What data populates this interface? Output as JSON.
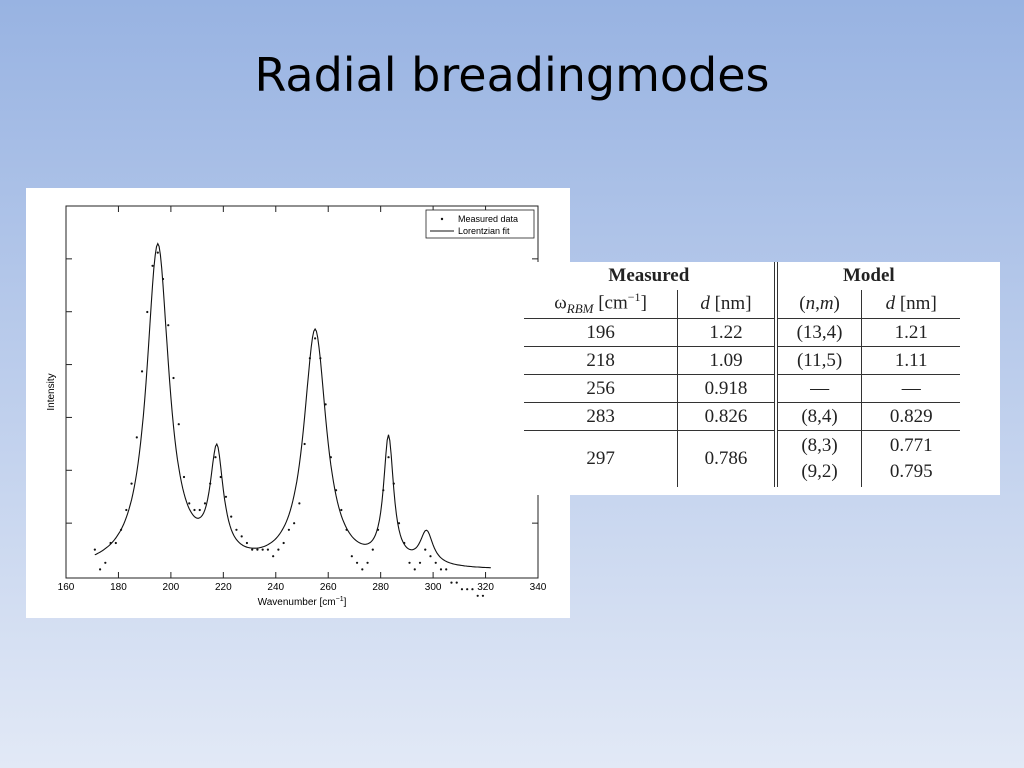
{
  "slide": {
    "title": "Radial breadingmodes"
  },
  "chart_data": {
    "type": "line",
    "xlabel": "Wavenumber [cm",
    "xlabel_sup": "−1",
    "xlabel_end": "]",
    "ylabel": "Intensity",
    "xlim": [
      160,
      340
    ],
    "ylim": [
      0,
      1
    ],
    "xticks": [
      160,
      180,
      200,
      220,
      240,
      260,
      280,
      300,
      320,
      340
    ],
    "legend": {
      "position": "top-right",
      "measured": "Measured data",
      "fit": "Lorentzian fit"
    },
    "fit": {
      "baseline": 0.008,
      "peaks": [
        {
          "center": 195,
          "height": 0.49,
          "hwhm": 5.2
        },
        {
          "center": 217.5,
          "height": 0.16,
          "hwhm": 3.0
        },
        {
          "center": 255,
          "height": 0.36,
          "hwhm": 5.2
        },
        {
          "center": 283,
          "height": 0.19,
          "hwhm": 2.3
        },
        {
          "center": 297.5,
          "height": 0.05,
          "hwhm": 3.0
        }
      ],
      "x_range": [
        171,
        322
      ]
    },
    "series": [
      {
        "name": "Measured data",
        "points": [
          [
            171,
            0.04
          ],
          [
            173,
            0.01
          ],
          [
            175,
            0.02
          ],
          [
            177,
            0.05
          ],
          [
            179,
            0.05
          ],
          [
            181,
            0.07
          ],
          [
            183,
            0.1
          ],
          [
            185,
            0.14
          ],
          [
            187,
            0.21
          ],
          [
            189,
            0.31
          ],
          [
            191,
            0.4
          ],
          [
            193,
            0.47
          ],
          [
            195,
            0.49
          ],
          [
            197,
            0.45
          ],
          [
            199,
            0.38
          ],
          [
            201,
            0.3
          ],
          [
            203,
            0.23
          ],
          [
            205,
            0.15
          ],
          [
            207,
            0.11
          ],
          [
            209,
            0.1
          ],
          [
            211,
            0.1
          ],
          [
            213,
            0.11
          ],
          [
            215,
            0.14
          ],
          [
            217,
            0.18
          ],
          [
            219,
            0.15
          ],
          [
            221,
            0.12
          ],
          [
            223,
            0.09
          ],
          [
            225,
            0.07
          ],
          [
            227,
            0.06
          ],
          [
            229,
            0.05
          ],
          [
            231,
            0.04
          ],
          [
            233,
            0.04
          ],
          [
            235,
            0.04
          ],
          [
            237,
            0.04
          ],
          [
            239,
            0.03
          ],
          [
            241,
            0.04
          ],
          [
            243,
            0.05
          ],
          [
            245,
            0.07
          ],
          [
            247,
            0.08
          ],
          [
            249,
            0.11
          ],
          [
            251,
            0.2
          ],
          [
            253,
            0.33
          ],
          [
            255,
            0.36
          ],
          [
            257,
            0.33
          ],
          [
            259,
            0.26
          ],
          [
            261,
            0.18
          ],
          [
            263,
            0.13
          ],
          [
            265,
            0.1
          ],
          [
            267,
            0.07
          ],
          [
            269,
            0.03
          ],
          [
            271,
            0.02
          ],
          [
            273,
            0.01
          ],
          [
            275,
            0.02
          ],
          [
            277,
            0.04
          ],
          [
            279,
            0.07
          ],
          [
            281,
            0.13
          ],
          [
            283,
            0.18
          ],
          [
            285,
            0.14
          ],
          [
            287,
            0.08
          ],
          [
            289,
            0.05
          ],
          [
            291,
            0.02
          ],
          [
            293,
            0.01
          ],
          [
            295,
            0.02
          ],
          [
            297,
            0.04
          ],
          [
            299,
            0.03
          ],
          [
            301,
            0.02
          ],
          [
            303,
            0.01
          ],
          [
            305,
            0.01
          ],
          [
            307,
            -0.01
          ],
          [
            309,
            -0.01
          ],
          [
            311,
            -0.02
          ],
          [
            313,
            -0.02
          ],
          [
            315,
            -0.02
          ],
          [
            317,
            -0.03
          ],
          [
            319,
            -0.03
          ]
        ]
      }
    ]
  },
  "table": {
    "group_measured": "Measured",
    "group_model": "Model",
    "col_omega_symbol": "ω",
    "col_omega_sub": "RBM",
    "col_omega_unit": "[cm",
    "col_omega_sup": "−1",
    "col_omega_end": "]",
    "col_d_symbol": "d",
    "col_d_unit": "[nm]",
    "col_nm_open": "(",
    "col_nm_n": "n",
    "col_nm_comma": ",",
    "col_nm_m": "m",
    "col_nm_close": ")",
    "col_d2_symbol": "d",
    "col_d2_unit": "[nm]",
    "rows": [
      {
        "omega": "196",
        "d": "1.22",
        "nm": "(13,4)",
        "dm": "1.21"
      },
      {
        "omega": "218",
        "d": "1.09",
        "nm": "(11,5)",
        "dm": "1.11"
      },
      {
        "omega": "256",
        "d": "0.918",
        "nm": "—",
        "dm": "—"
      },
      {
        "omega": "283",
        "d": "0.826",
        "nm": "(8,4)",
        "dm": "0.829"
      }
    ],
    "last_row": {
      "omega": "297",
      "d": "0.786",
      "nm": [
        "(8,3)",
        "(9,2)"
      ],
      "dm": [
        "0.771",
        "0.795"
      ]
    }
  }
}
